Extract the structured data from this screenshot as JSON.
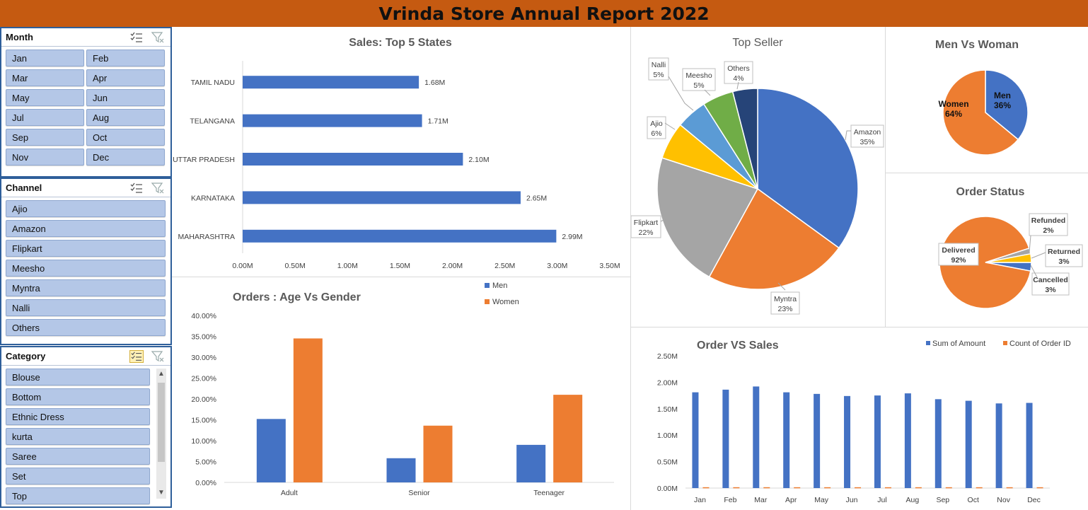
{
  "report_title": "Vrinda Store Annual Report 2022",
  "slicers": {
    "month": {
      "title": "Month",
      "items": [
        "Jan",
        "Feb",
        "Mar",
        "Apr",
        "May",
        "Jun",
        "Jul",
        "Aug",
        "Sep",
        "Oct",
        "Nov",
        "Dec"
      ]
    },
    "channel": {
      "title": "Channel",
      "items": [
        "Ajio",
        "Amazon",
        "Flipkart",
        "Meesho",
        "Myntra",
        "Nalli",
        "Others"
      ]
    },
    "category": {
      "title": "Category",
      "items": [
        "Blouse",
        "Bottom",
        "Ethnic Dress",
        "kurta",
        "Saree",
        "Set",
        "Top"
      ]
    }
  },
  "icons": {
    "multi_select": "multi-select-icon",
    "clear_filter": "clear-filter-icon",
    "scroll_up": "chevron-up-icon",
    "scroll_down": "chevron-down-icon"
  },
  "colors": {
    "title_bar": "#c55a11",
    "blue": "#4472c4",
    "orange": "#ed7d31",
    "gray": "#a5a5a5",
    "yellow": "#ffc000",
    "light_blue": "#5b9bd5",
    "green": "#70ad47",
    "navy": "#264478",
    "slicer_button": "#b4c7e7"
  },
  "chart_data": [
    {
      "id": "states",
      "type": "bar",
      "orientation": "horizontal",
      "title": "Sales: Top 5 States",
      "categories": [
        "TAMIL NADU",
        "TELANGANA",
        "UTTAR PRADESH",
        "KARNATAKA",
        "MAHARASHTRA"
      ],
      "values": [
        1.68,
        1.71,
        2.1,
        2.65,
        2.99
      ],
      "value_labels": [
        "1.68M",
        "1.71M",
        "2.10M",
        "2.65M",
        "2.99M"
      ],
      "xlim": [
        0,
        3.5
      ],
      "xticks": [
        "0.00M",
        "0.50M",
        "1.00M",
        "1.50M",
        "2.00M",
        "2.50M",
        "3.00M",
        "3.50M"
      ],
      "grid": false
    },
    {
      "id": "age_gender",
      "type": "bar",
      "title": "Orders : Age Vs Gender",
      "categories": [
        "Adult",
        "Senior",
        "Teenager"
      ],
      "series": [
        {
          "name": "Men",
          "values": [
            15.2,
            5.8,
            9.0
          ]
        },
        {
          "name": "Women",
          "values": [
            34.5,
            13.6,
            21.0
          ]
        }
      ],
      "ylim": [
        0,
        40
      ],
      "yticks": [
        "0.00%",
        "5.00%",
        "10.00%",
        "15.00%",
        "20.00%",
        "25.00%",
        "30.00%",
        "35.00%",
        "40.00%"
      ],
      "legend": "top-right"
    },
    {
      "id": "top_seller",
      "type": "pie",
      "title": "Top Seller",
      "slices": [
        {
          "label": "Amazon",
          "pct": "35%",
          "value": 35
        },
        {
          "label": "Myntra",
          "pct": "23%",
          "value": 23
        },
        {
          "label": "Flipkart",
          "pct": "22%",
          "value": 22
        },
        {
          "label": "Ajio",
          "pct": "6%",
          "value": 6
        },
        {
          "label": "Nalli",
          "pct": "5%",
          "value": 5
        },
        {
          "label": "Meesho",
          "pct": "5%",
          "value": 5
        },
        {
          "label": "Others",
          "pct": "4%",
          "value": 4
        }
      ]
    },
    {
      "id": "men_women",
      "type": "pie",
      "title": "Men Vs Woman",
      "slices": [
        {
          "label": "Men",
          "pct": "36%",
          "value": 36
        },
        {
          "label": "Women",
          "pct": "64%",
          "value": 64
        }
      ]
    },
    {
      "id": "order_status",
      "type": "pie",
      "title": "Order Status",
      "slices": [
        {
          "label": "Cancelled",
          "pct": "3%",
          "value": 3
        },
        {
          "label": "Delivered",
          "pct": "92%",
          "value": 92
        },
        {
          "label": "Refunded",
          "pct": "2%",
          "value": 2
        },
        {
          "label": "Returned",
          "pct": "3%",
          "value": 3
        }
      ]
    },
    {
      "id": "order_sales",
      "type": "bar",
      "title": "Order VS Sales",
      "categories": [
        "Jan",
        "Feb",
        "Mar",
        "Apr",
        "May",
        "Jun",
        "Jul",
        "Aug",
        "Sep",
        "Oct",
        "Nov",
        "Dec"
      ],
      "series": [
        {
          "name": "Sum of Amount",
          "values": [
            1.81,
            1.86,
            1.92,
            1.81,
            1.78,
            1.74,
            1.75,
            1.79,
            1.68,
            1.65,
            1.6,
            1.61
          ]
        },
        {
          "name": "Count of Order ID",
          "values": [
            0.0026,
            0.0027,
            0.0028,
            0.0026,
            0.0026,
            0.0025,
            0.0025,
            0.0026,
            0.0024,
            0.0024,
            0.0023,
            0.0023
          ]
        }
      ],
      "ylim": [
        0,
        2.5
      ],
      "yticks": [
        "0.00M",
        "0.50M",
        "1.00M",
        "1.50M",
        "2.00M",
        "2.50M"
      ],
      "legend": "top-right"
    }
  ]
}
